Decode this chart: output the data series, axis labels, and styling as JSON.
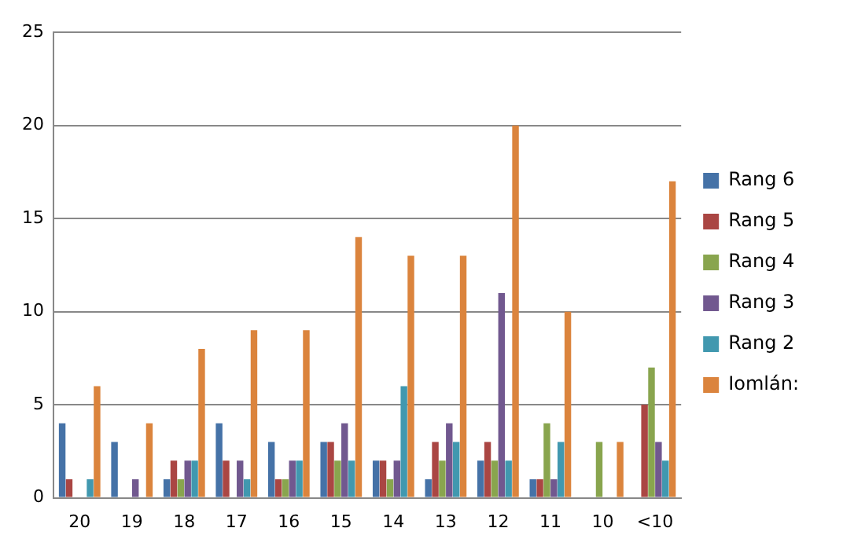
{
  "chart_data": {
    "type": "bar",
    "categories": [
      "20",
      "19",
      "18",
      "17",
      "16",
      "15",
      "14",
      "13",
      "12",
      "11",
      "10",
      "<10"
    ],
    "series": [
      {
        "name": "Rang 6",
        "color": "#4572a7",
        "values": [
          4,
          3,
          1,
          4,
          3,
          3,
          2,
          1,
          2,
          1,
          0,
          0
        ]
      },
      {
        "name": "Rang 5",
        "color": "#aa4643",
        "values": [
          1,
          0,
          2,
          2,
          1,
          3,
          2,
          3,
          3,
          1,
          0,
          5
        ]
      },
      {
        "name": "Rang 4",
        "color": "#89a54e",
        "values": [
          0,
          0,
          1,
          0,
          1,
          2,
          1,
          2,
          2,
          4,
          3,
          7
        ]
      },
      {
        "name": "Rang 3",
        "color": "#71588f",
        "values": [
          0,
          1,
          2,
          2,
          2,
          4,
          2,
          4,
          11,
          1,
          0,
          3
        ]
      },
      {
        "name": "Rang 2",
        "color": "#4198af",
        "values": [
          1,
          0,
          2,
          1,
          2,
          2,
          6,
          3,
          2,
          3,
          0,
          2
        ]
      },
      {
        "name": "Iomlán:",
        "color": "#db843d",
        "values": [
          6,
          4,
          8,
          9,
          9,
          14,
          13,
          13,
          20,
          10,
          3,
          17
        ]
      }
    ],
    "ylim": [
      0,
      25
    ],
    "yticks": [
      0,
      5,
      10,
      15,
      20,
      25
    ],
    "grid": "y",
    "legend": "right"
  }
}
